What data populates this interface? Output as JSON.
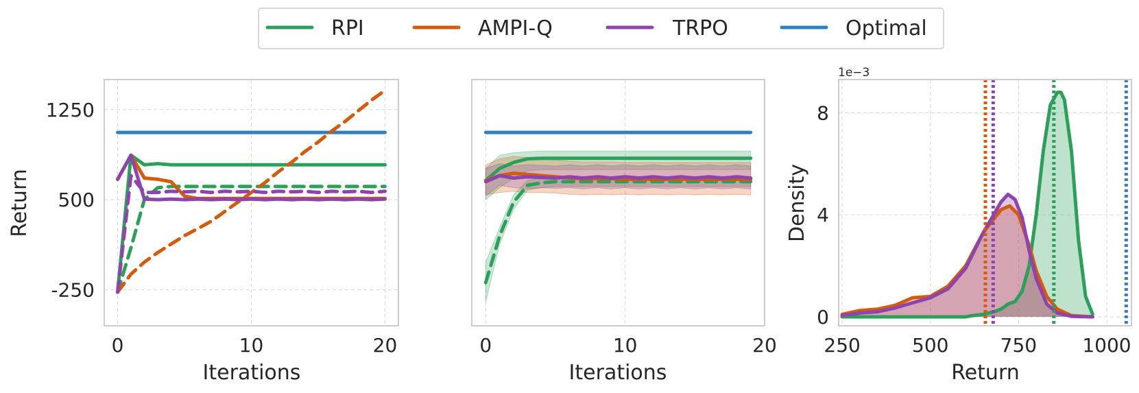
{
  "legend": {
    "items": [
      {
        "label": "RPI",
        "color": "#2ca05a"
      },
      {
        "label": "AMPI-Q",
        "color": "#d45a0c"
      },
      {
        "label": "TRPO",
        "color": "#8e44ad"
      },
      {
        "label": "Optimal",
        "color": "#2f7fc1"
      }
    ]
  },
  "chart_data": [
    {
      "type": "line",
      "panel": "left",
      "xlabel": "Iterations",
      "ylabel": "Return",
      "xlim": [
        -1,
        21
      ],
      "ylim": [
        -550,
        1500
      ],
      "xticks": [
        0,
        10,
        20
      ],
      "xtick_labels": [
        "0",
        "10",
        "20"
      ],
      "yticks": [
        -250,
        500,
        1250
      ],
      "ytick_labels": [
        "-250",
        "500",
        "1250"
      ],
      "grid": true,
      "series": [
        {
          "name": "Optimal",
          "color": "#2f7fc1",
          "dash": false,
          "x": [
            0,
            20
          ],
          "y": [
            1060,
            1060
          ]
        },
        {
          "name": "RPI",
          "color": "#2ca05a",
          "dash": false,
          "x": [
            0,
            1,
            2,
            3,
            4,
            5,
            6,
            7,
            8,
            9,
            10,
            11,
            12,
            13,
            14,
            15,
            16,
            17,
            18,
            19,
            20
          ],
          "y": [
            -270,
            870,
            790,
            800,
            790,
            790,
            790,
            790,
            790,
            790,
            790,
            790,
            790,
            790,
            790,
            790,
            790,
            790,
            790,
            790,
            790
          ]
        },
        {
          "name": "RPI",
          "color": "#2ca05a",
          "dash": true,
          "x": [
            0,
            1,
            2,
            3,
            4,
            5,
            6,
            7,
            8,
            9,
            10,
            11,
            12,
            13,
            14,
            15,
            16,
            17,
            18,
            19,
            20
          ],
          "y": [
            -270,
            100,
            500,
            600,
            610,
            610,
            610,
            610,
            610,
            610,
            610,
            610,
            610,
            610,
            610,
            610,
            610,
            610,
            610,
            610,
            610
          ]
        },
        {
          "name": "AMPI-Q",
          "color": "#d45a0c",
          "dash": false,
          "x": [
            0,
            1,
            2,
            3,
            4,
            5,
            6,
            7,
            8,
            9,
            10,
            11,
            12,
            13,
            14,
            15,
            16,
            17,
            18,
            19,
            20
          ],
          "y": [
            670,
            870,
            680,
            670,
            650,
            530,
            510,
            510,
            510,
            510,
            510,
            510,
            510,
            510,
            510,
            510,
            510,
            510,
            510,
            510,
            510
          ]
        },
        {
          "name": "AMPI-Q",
          "color": "#d45a0c",
          "dash": true,
          "x": [
            0,
            1,
            2,
            3,
            4,
            5,
            6,
            7,
            8,
            9,
            10,
            11,
            12,
            13,
            14,
            15,
            16,
            17,
            18,
            19,
            20
          ],
          "y": [
            -270,
            -120,
            -20,
            60,
            130,
            200,
            260,
            320,
            400,
            480,
            560,
            640,
            730,
            810,
            900,
            980,
            1070,
            1150,
            1240,
            1330,
            1410
          ]
        },
        {
          "name": "TRPO",
          "color": "#8e44ad",
          "dash": false,
          "x": [
            0,
            1,
            2,
            3,
            4,
            5,
            6,
            7,
            8,
            9,
            10,
            11,
            12,
            13,
            14,
            15,
            16,
            17,
            18,
            19,
            20
          ],
          "y": [
            670,
            870,
            505,
            500,
            505,
            500,
            505,
            500,
            505,
            500,
            505,
            500,
            505,
            500,
            505,
            500,
            505,
            500,
            505,
            500,
            505
          ]
        },
        {
          "name": "TRPO",
          "color": "#8e44ad",
          "dash": true,
          "x": [
            0,
            1,
            2,
            3,
            4,
            5,
            6,
            7,
            8,
            9,
            10,
            11,
            12,
            13,
            14,
            15,
            16,
            17,
            18,
            19,
            20
          ],
          "y": [
            -270,
            700,
            560,
            560,
            570,
            565,
            570,
            560,
            570,
            565,
            570,
            560,
            570,
            565,
            570,
            560,
            570,
            565,
            570,
            560,
            570
          ]
        }
      ]
    },
    {
      "type": "line",
      "panel": "middle",
      "xlabel": "Iterations",
      "ylabel": "",
      "xlim": [
        -1,
        20
      ],
      "ylim": [
        -550,
        1500
      ],
      "xticks": [
        0,
        10,
        20
      ],
      "xtick_labels": [
        "0",
        "10",
        "20"
      ],
      "yticks": [],
      "grid": true,
      "series": [
        {
          "name": "Optimal",
          "color": "#2f7fc1",
          "dash": false,
          "x": [
            0,
            19
          ],
          "y": [
            1060,
            1060
          ]
        },
        {
          "name": "RPI",
          "color": "#2ca05a",
          "dash": false,
          "x": [
            0,
            1,
            2,
            3,
            4,
            5,
            6,
            7,
            8,
            9,
            10,
            11,
            12,
            13,
            14,
            15,
            16,
            17,
            18,
            19
          ],
          "y": [
            660,
            760,
            810,
            840,
            845,
            845,
            845,
            845,
            845,
            845,
            845,
            845,
            845,
            845,
            845,
            845,
            845,
            845,
            845,
            845
          ],
          "band_lower": [
            500,
            600,
            680,
            740,
            750,
            750,
            750,
            750,
            750,
            750,
            750,
            750,
            750,
            750,
            750,
            750,
            750,
            750,
            750,
            750
          ],
          "band_upper": [
            760,
            870,
            890,
            900,
            905,
            905,
            905,
            905,
            905,
            905,
            905,
            905,
            905,
            905,
            905,
            905,
            905,
            905,
            905,
            905
          ]
        },
        {
          "name": "RPI",
          "color": "#2ca05a",
          "dash": true,
          "x": [
            0,
            1,
            2,
            3,
            4,
            5,
            6,
            7,
            8,
            9,
            10,
            11,
            12,
            13,
            14,
            15,
            16,
            17,
            18,
            19
          ],
          "y": [
            -190,
            200,
            480,
            620,
            640,
            650,
            650,
            650,
            650,
            650,
            650,
            650,
            650,
            650,
            650,
            650,
            650,
            650,
            650,
            650
          ],
          "band_lower": [
            -350,
            130,
            420,
            580,
            600,
            610,
            610,
            610,
            610,
            610,
            610,
            610,
            610,
            610,
            610,
            610,
            610,
            610,
            610,
            610
          ],
          "band_upper": [
            -20,
            270,
            540,
            660,
            680,
            690,
            690,
            690,
            690,
            690,
            690,
            690,
            690,
            690,
            690,
            690,
            690,
            690,
            690,
            690
          ]
        },
        {
          "name": "AMPI-Q",
          "color": "#d45a0c",
          "dash": false,
          "x": [
            0,
            1,
            2,
            3,
            4,
            5,
            6,
            7,
            8,
            9,
            10,
            11,
            12,
            13,
            14,
            15,
            16,
            17,
            18,
            19
          ],
          "y": [
            660,
            700,
            720,
            710,
            700,
            690,
            680,
            675,
            675,
            675,
            670,
            670,
            670,
            670,
            670,
            670,
            670,
            670,
            670,
            670
          ],
          "band_lower": [
            540,
            560,
            570,
            560,
            560,
            555,
            545,
            540,
            545,
            540,
            545,
            540,
            545,
            540,
            545,
            540,
            545,
            540,
            545,
            540
          ],
          "band_upper": [
            790,
            840,
            860,
            850,
            840,
            830,
            820,
            815,
            815,
            815,
            810,
            810,
            810,
            810,
            810,
            810,
            810,
            810,
            810,
            810
          ]
        },
        {
          "name": "TRPO",
          "color": "#8e44ad",
          "dash": false,
          "x": [
            0,
            1,
            2,
            3,
            4,
            5,
            6,
            7,
            8,
            9,
            10,
            11,
            12,
            13,
            14,
            15,
            16,
            17,
            18,
            19
          ],
          "y": [
            650,
            700,
            680,
            690,
            685,
            680,
            690,
            680,
            690,
            680,
            690,
            680,
            690,
            680,
            690,
            680,
            690,
            680,
            690,
            680
          ],
          "band_lower": [
            530,
            620,
            600,
            590,
            600,
            595,
            600,
            590,
            600,
            590,
            600,
            590,
            600,
            590,
            600,
            590,
            600,
            590,
            600,
            590
          ],
          "band_upper": [
            760,
            800,
            780,
            790,
            785,
            780,
            790,
            780,
            790,
            780,
            790,
            780,
            790,
            780,
            790,
            780,
            790,
            780,
            790,
            780
          ]
        }
      ]
    },
    {
      "type": "area",
      "panel": "right",
      "xlabel": "Return",
      "ylabel": "Density",
      "scale_label": "1e−3",
      "xlim": [
        240,
        1070
      ],
      "ylim": [
        -0.35,
        9.3
      ],
      "xticks": [
        250,
        500,
        750,
        1000
      ],
      "xtick_labels": [
        "250",
        "500",
        "750",
        "1000"
      ],
      "yticks": [
        0,
        4,
        8
      ],
      "ytick_labels": [
        "0",
        "4",
        "8"
      ],
      "grid": true,
      "series": [
        {
          "name": "RPI",
          "color": "#2ca05a",
          "fill_opacity": 0.3,
          "x": [
            250,
            300,
            350,
            400,
            450,
            500,
            550,
            600,
            620,
            650,
            680,
            700,
            720,
            740,
            760,
            780,
            800,
            820,
            840,
            860,
            870,
            880,
            900,
            920,
            940,
            960
          ],
          "y": [
            0,
            0,
            0,
            0,
            0,
            0,
            0,
            0,
            0.05,
            0.1,
            0.2,
            0.3,
            0.5,
            0.6,
            1.0,
            2.0,
            4.0,
            6.5,
            8.3,
            8.8,
            8.8,
            8.5,
            6.5,
            3.0,
            0.8,
            0.1
          ]
        },
        {
          "name": "AMPI-Q",
          "color": "#d45a0c",
          "fill_opacity": 0.3,
          "x": [
            250,
            300,
            350,
            400,
            450,
            500,
            550,
            600,
            650,
            700,
            725,
            750,
            780,
            800,
            830,
            860,
            900,
            960
          ],
          "y": [
            0.1,
            0.25,
            0.3,
            0.45,
            0.75,
            0.8,
            1.2,
            2.0,
            3.3,
            4.2,
            4.35,
            4.0,
            2.8,
            1.8,
            0.8,
            0.3,
            0.05,
            0
          ]
        },
        {
          "name": "TRPO",
          "color": "#8e44ad",
          "fill_opacity": 0.3,
          "x": [
            250,
            300,
            350,
            400,
            450,
            500,
            550,
            600,
            650,
            700,
            720,
            740,
            760,
            780,
            800,
            830,
            860,
            900,
            960
          ],
          "y": [
            0.05,
            0.15,
            0.2,
            0.35,
            0.55,
            0.75,
            1.1,
            1.9,
            3.3,
            4.5,
            4.8,
            4.6,
            3.9,
            2.6,
            1.5,
            0.5,
            0.15,
            0.02,
            0
          ]
        }
      ],
      "vlines": [
        {
          "name": "AMPI-Q mean",
          "color": "#d45a0c",
          "x": 656
        },
        {
          "name": "TRPO mean",
          "color": "#8e44ad",
          "x": 678
        },
        {
          "name": "RPI mean",
          "color": "#2ca05a",
          "x": 850
        },
        {
          "name": "Optimal",
          "color": "#2f7fc1",
          "x": 1055
        }
      ]
    }
  ]
}
